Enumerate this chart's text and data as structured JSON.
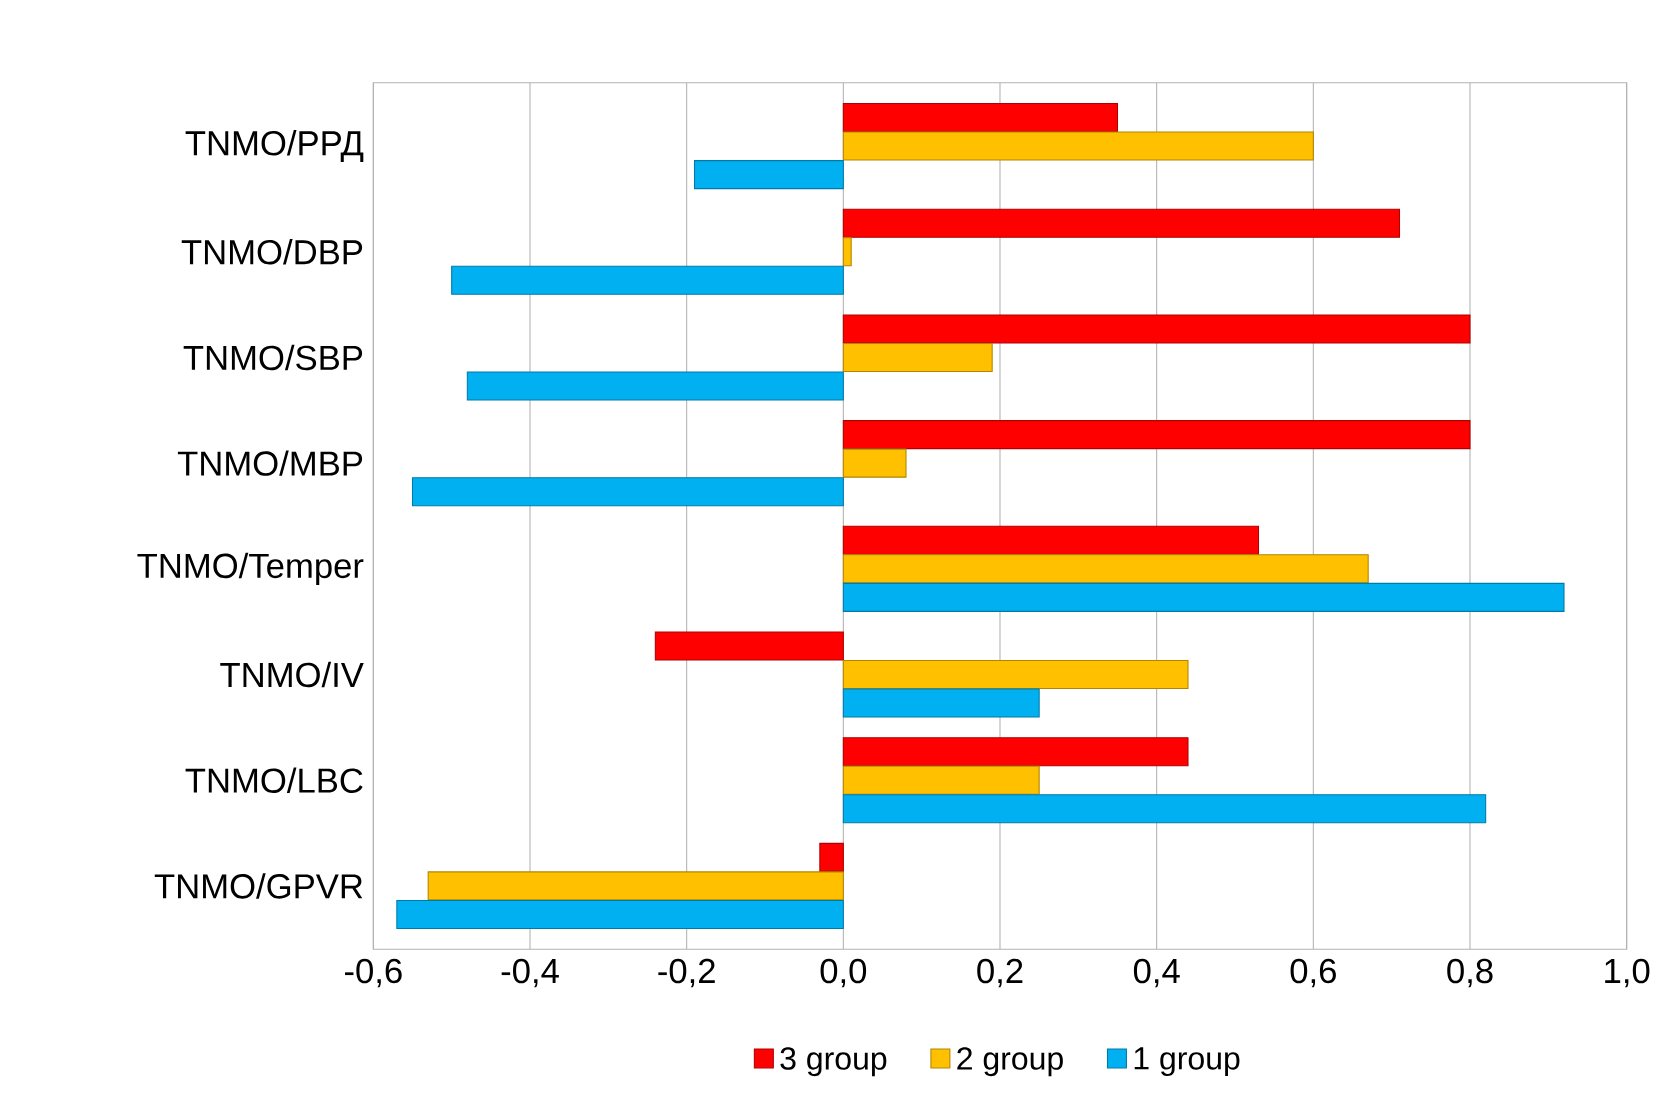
{
  "chart_data": {
    "type": "bar",
    "orientation": "horizontal",
    "categories": [
      "TNMO/РРД",
      "TNMO/DBP",
      "TNMO/SBP",
      "TNMO/MBP",
      "TNMO/Temper",
      "TNMO/IV",
      "TNMO/LBC",
      "TNMO/GPVR"
    ],
    "series": [
      {
        "name": "3 group",
        "color": "#ff0000",
        "values": [
          0.35,
          0.71,
          0.8,
          0.8,
          0.53,
          -0.24,
          0.44,
          -0.03
        ]
      },
      {
        "name": "2 group",
        "color": "#ffc000",
        "values": [
          0.6,
          0.01,
          0.19,
          0.08,
          0.67,
          0.44,
          0.25,
          -0.53
        ]
      },
      {
        "name": "1 group",
        "color": "#00b0f0",
        "values": [
          -0.19,
          -0.5,
          -0.48,
          -0.55,
          0.92,
          0.25,
          0.82,
          -0.57
        ]
      }
    ],
    "xlim": [
      -0.6,
      1.0
    ],
    "xticks": [
      {
        "value": -0.6,
        "label": "-0,6"
      },
      {
        "value": -0.4,
        "label": "-0,4"
      },
      {
        "value": -0.2,
        "label": "-0,2"
      },
      {
        "value": 0.0,
        "label": "0,0"
      },
      {
        "value": 0.2,
        "label": "0,2"
      },
      {
        "value": 0.4,
        "label": "0,4"
      },
      {
        "value": 0.6,
        "label": "0,6"
      },
      {
        "value": 0.8,
        "label": "0,8"
      },
      {
        "value": 1.0,
        "label": "1,0"
      }
    ],
    "grid": "x",
    "legend": "bottom"
  }
}
